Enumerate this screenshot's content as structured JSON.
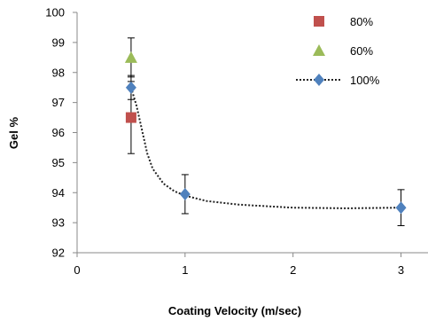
{
  "chart_data": {
    "type": "scatter",
    "xlabel": "Coating Velocity (m/sec)",
    "ylabel": "Gel %",
    "xlim": [
      0,
      3.25
    ],
    "ylim": [
      92,
      100
    ],
    "xticks": [
      "0",
      "1",
      "2",
      "3"
    ],
    "xtick_values": [
      0,
      1,
      2,
      3
    ],
    "yticks": [
      "92",
      "93",
      "94",
      "95",
      "96",
      "97",
      "98",
      "99",
      "100"
    ],
    "ytick_values": [
      92,
      93,
      94,
      95,
      96,
      97,
      98,
      99,
      100
    ],
    "grid": false,
    "legend_position": "top-right",
    "series": [
      {
        "name": "80%",
        "marker": "square",
        "color": "#C0504D",
        "points": [
          {
            "x": 0.5,
            "y": 96.5
          }
        ],
        "line": false
      },
      {
        "name": "60%",
        "marker": "triangle",
        "color": "#9BBB59",
        "points": [
          {
            "x": 0.5,
            "y": 98.5,
            "err": 0.65
          }
        ],
        "line": false
      },
      {
        "name": "100%",
        "marker": "diamond",
        "color": "#4F81BD",
        "points": [
          {
            "x": 0.5,
            "y": 97.5,
            "err": 0.4
          },
          {
            "x": 1.0,
            "y": 93.95,
            "err": 0.65
          },
          {
            "x": 3.0,
            "y": 93.5,
            "err": 0.6
          }
        ],
        "line": true,
        "line_style": "dotted",
        "curve": [
          [
            0.5,
            97.5
          ],
          [
            0.55,
            96.9
          ],
          [
            0.6,
            96.1
          ],
          [
            0.65,
            95.3
          ],
          [
            0.7,
            94.8
          ],
          [
            0.8,
            94.3
          ],
          [
            0.9,
            94.05
          ],
          [
            1.0,
            93.9
          ],
          [
            1.2,
            93.72
          ],
          [
            1.5,
            93.6
          ],
          [
            2.0,
            93.5
          ],
          [
            2.5,
            93.48
          ],
          [
            3.0,
            93.5
          ]
        ]
      }
    ],
    "extra_error_bars": [
      {
        "x": 0.5,
        "y": 96.5,
        "err": 1.2
      }
    ]
  }
}
